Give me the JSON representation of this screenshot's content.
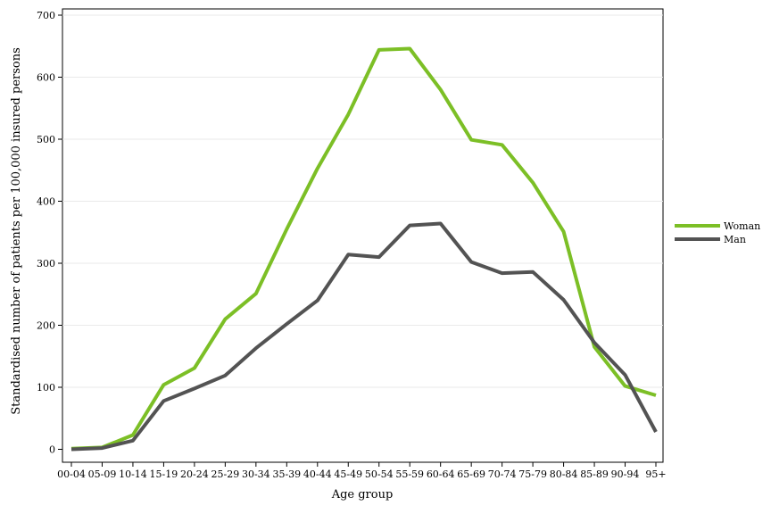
{
  "chart_data": {
    "type": "line",
    "xlabel": "Age group",
    "ylabel": "Standardised number of patients per 100,000 insured persons",
    "ylim": [
      0,
      700
    ],
    "yticks": [
      0,
      100,
      200,
      300,
      400,
      500,
      600,
      700
    ],
    "grid": true,
    "legend_position": "right",
    "categories": [
      "00-04",
      "05-09",
      "10-14",
      "15-19",
      "20-24",
      "25-29",
      "30-34",
      "35-39",
      "40-44",
      "45-49",
      "50-54",
      "55-59",
      "60-64",
      "65-69",
      "70-74",
      "75-79",
      "80-84",
      "85-89",
      "90-94",
      "95+"
    ],
    "series": [
      {
        "name": "Woman",
        "color": "#7cbf26",
        "values": [
          1,
          3,
          23,
          104,
          131,
          210,
          251,
          355,
          453,
          540,
          644,
          646,
          580,
          499,
          491,
          430,
          351,
          165,
          102,
          87
        ]
      },
      {
        "name": "Man",
        "color": "#535353",
        "values": [
          0,
          2,
          14,
          78,
          98,
          119,
          163,
          202,
          240,
          314,
          310,
          361,
          364,
          302,
          284,
          286,
          241,
          172,
          120,
          28
        ]
      }
    ]
  }
}
